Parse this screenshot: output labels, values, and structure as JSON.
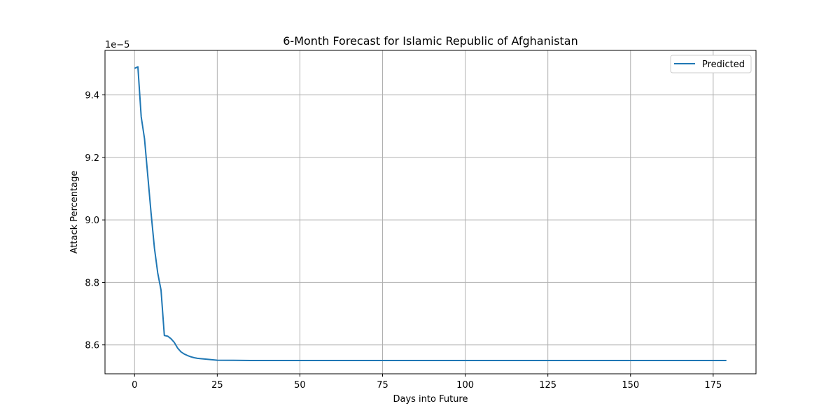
{
  "chart_data": {
    "type": "line",
    "title": "6-Month Forecast for Islamic Republic of Afghanistan",
    "xlabel": "Days into Future",
    "ylabel": "Attack Percentage",
    "y_offset_label": "1e−5",
    "y_scale_factor": 1e-05,
    "xlim": [
      -8.95,
      187.95
    ],
    "ylim": [
      8.5075,
      9.5425
    ],
    "x_ticks": [
      0,
      25,
      50,
      75,
      100,
      125,
      150,
      175
    ],
    "y_ticks": [
      8.6,
      8.8,
      9.0,
      9.2,
      9.4
    ],
    "y_tick_labels": [
      "8.6",
      "8.8",
      "9.0",
      "9.2",
      "9.4"
    ],
    "grid": true,
    "legend_position": "top-right",
    "series": [
      {
        "name": "Predicted",
        "color": "#1f77b4",
        "points": [
          [
            0,
            9.485
          ],
          [
            1,
            9.49
          ],
          [
            2,
            9.33
          ],
          [
            3,
            9.26
          ],
          [
            4,
            9.14
          ],
          [
            5,
            9.02
          ],
          [
            6,
            8.91
          ],
          [
            7,
            8.83
          ],
          [
            8,
            8.775
          ],
          [
            9,
            8.63
          ],
          [
            10,
            8.628
          ],
          [
            11,
            8.62
          ],
          [
            12,
            8.608
          ],
          [
            13,
            8.59
          ],
          [
            14,
            8.578
          ],
          [
            15,
            8.571
          ],
          [
            16,
            8.566
          ],
          [
            17,
            8.562
          ],
          [
            18,
            8.559
          ],
          [
            19,
            8.557
          ],
          [
            20,
            8.556
          ],
          [
            22,
            8.554
          ],
          [
            25,
            8.551
          ],
          [
            30,
            8.5505
          ],
          [
            35,
            8.55
          ],
          [
            179,
            8.55
          ]
        ]
      }
    ]
  }
}
